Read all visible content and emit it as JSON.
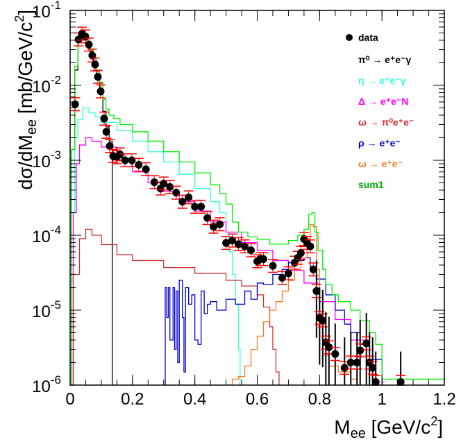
{
  "chart_data": {
    "type": "line",
    "xlabel": {
      "main": "M",
      "sub": "ee",
      "unit": " [GeV/c",
      "unit_sup": "2",
      "unit_end": "]"
    },
    "ylabel": {
      "main": "dσ/dM",
      "sub": "ee",
      "unit": " [mb/GeV/c",
      "unit_sup": "2",
      "unit_end": "]"
    },
    "xlim": [
      0,
      1.2
    ],
    "ylim": [
      1e-06,
      0.1
    ],
    "yscale": "log",
    "grid": false,
    "legend_position": "top-right",
    "x_ticks": [
      "0",
      "0.2",
      "0.4",
      "0.6",
      "0.8",
      "1",
      "1.2"
    ],
    "y_ticks": [
      {
        "base": "10",
        "exp": "-6"
      },
      {
        "base": "10",
        "exp": "-5"
      },
      {
        "base": "10",
        "exp": "-4"
      },
      {
        "base": "10",
        "exp": "-3"
      },
      {
        "base": "10",
        "exp": "-2"
      },
      {
        "base": "10",
        "exp": "-1"
      }
    ],
    "data": {
      "name": "data",
      "color": "#000000",
      "error_color": "#ff0000",
      "points": [
        [
          0.016,
          0.0056
        ],
        [
          0.027,
          0.041
        ],
        [
          0.038,
          0.049
        ],
        [
          0.049,
          0.045
        ],
        [
          0.06,
          0.035
        ],
        [
          0.071,
          0.025
        ],
        [
          0.08,
          0.019
        ],
        [
          0.089,
          0.013
        ],
        [
          0.098,
          0.0083
        ],
        [
          0.109,
          0.0036
        ],
        [
          0.116,
          0.0024
        ],
        [
          0.127,
          0.00155
        ],
        [
          0.138,
          0.00114
        ],
        [
          0.149,
          0.0011
        ],
        [
          0.16,
          0.0012
        ],
        [
          0.176,
          0.001
        ],
        [
          0.198,
          0.001
        ],
        [
          0.22,
          0.00087
        ],
        [
          0.243,
          0.00076
        ],
        [
          0.27,
          0.00051
        ],
        [
          0.29,
          0.00042
        ],
        [
          0.3,
          0.00049
        ],
        [
          0.32,
          0.00044
        ],
        [
          0.34,
          0.00037
        ],
        [
          0.36,
          0.00028
        ],
        [
          0.38,
          0.00032
        ],
        [
          0.4,
          0.00024
        ],
        [
          0.42,
          0.00024
        ],
        [
          0.44,
          0.00017
        ],
        [
          0.46,
          0.00013
        ],
        [
          0.48,
          0.00014
        ],
        [
          0.5,
          7.9e-05
        ],
        [
          0.52,
          8.5e-05
        ],
        [
          0.54,
          7.6e-05
        ],
        [
          0.56,
          7.1e-05
        ],
        [
          0.58,
          6.3e-05
        ],
        [
          0.6,
          4.5e-05
        ],
        [
          0.61,
          4.8e-05
        ],
        [
          0.62,
          4.8e-05
        ],
        [
          0.65,
          3.9e-05
        ],
        [
          0.68,
          2.7e-05
        ],
        [
          0.7,
          3.1e-05
        ],
        [
          0.72,
          4.3e-05
        ],
        [
          0.73,
          5e-05
        ],
        [
          0.74,
          5.8e-05
        ],
        [
          0.75,
          8.9e-05
        ],
        [
          0.76,
          7.9e-05
        ],
        [
          0.77,
          7.1e-05
        ],
        [
          0.78,
          3.5e-05
        ],
        [
          0.79,
          1.8e-05
        ],
        [
          0.8,
          7.9e-06
        ],
        [
          0.81,
          7.3e-06
        ],
        [
          0.82,
          3.7e-06
        ],
        [
          0.83,
          3.2e-06
        ],
        [
          0.85,
          2.6e-06
        ],
        [
          0.88,
          1.7e-06
        ],
        [
          0.9,
          2e-06
        ],
        [
          0.92,
          2e-06
        ],
        [
          0.93,
          2.9e-06
        ],
        [
          0.95,
          3.6e-06
        ],
        [
          0.96,
          2e-06
        ],
        [
          0.97,
          1.7e-06
        ],
        [
          0.98,
          1.1e-06
        ],
        [
          1.06,
          1.1e-06
        ]
      ]
    },
    "series": [
      {
        "name": "π⁰ → e⁺e⁻γ",
        "color": "#000000",
        "points": [
          [
            0.0,
            1e-06
          ],
          [
            0.005,
            0.0014
          ],
          [
            0.015,
            0.016
          ],
          [
            0.025,
            0.04
          ],
          [
            0.035,
            0.048
          ],
          [
            0.045,
            0.045
          ],
          [
            0.055,
            0.036
          ],
          [
            0.065,
            0.028
          ],
          [
            0.075,
            0.021
          ],
          [
            0.085,
            0.014
          ],
          [
            0.095,
            0.009
          ],
          [
            0.105,
            0.0045
          ],
          [
            0.115,
            0.0028
          ],
          [
            0.125,
            0.0018
          ],
          [
            0.135,
            1e-06
          ]
        ]
      },
      {
        "name": "η → e⁺e⁻γ",
        "color": "#33ffdd",
        "points": [
          [
            0.0,
            1e-06
          ],
          [
            0.005,
            0.0002
          ],
          [
            0.015,
            0.002
          ],
          [
            0.025,
            0.0035
          ],
          [
            0.04,
            0.005
          ],
          [
            0.06,
            0.0043
          ],
          [
            0.08,
            0.0038
          ],
          [
            0.1,
            0.0032
          ],
          [
            0.15,
            0.0025
          ],
          [
            0.2,
            0.0018
          ],
          [
            0.25,
            0.0013
          ],
          [
            0.3,
            0.00095
          ],
          [
            0.35,
            0.00065
          ],
          [
            0.4,
            0.00042
          ],
          [
            0.45,
            0.00028
          ],
          [
            0.48,
            0.0002
          ],
          [
            0.5,
            0.00011
          ],
          [
            0.51,
            6e-05
          ],
          [
            0.52,
            3e-05
          ],
          [
            0.53,
            1.2e-05
          ],
          [
            0.54,
            3e-06
          ],
          [
            0.545,
            1e-06
          ]
        ]
      },
      {
        "name": "Δ → e⁺e⁻N",
        "color": "#ff00ff",
        "points": [
          [
            0.0,
            1e-06
          ],
          [
            0.01,
            0.0002
          ],
          [
            0.02,
            0.0009
          ],
          [
            0.03,
            0.0016
          ],
          [
            0.05,
            0.002
          ],
          [
            0.07,
            0.0018
          ],
          [
            0.1,
            0.0015
          ],
          [
            0.15,
            0.001
          ],
          [
            0.2,
            0.0007
          ],
          [
            0.25,
            0.0005
          ],
          [
            0.3,
            0.00038
          ],
          [
            0.35,
            0.00028
          ],
          [
            0.4,
            0.00021
          ],
          [
            0.45,
            0.00015
          ],
          [
            0.5,
            0.00011
          ],
          [
            0.55,
            8e-05
          ],
          [
            0.6,
            6.3e-05
          ],
          [
            0.65,
            4.6e-05
          ],
          [
            0.7,
            3.4e-05
          ],
          [
            0.75,
            2.3e-05
          ],
          [
            0.8,
            1.3e-05
          ],
          [
            0.85,
            7.5e-06
          ],
          [
            0.9,
            4e-06
          ],
          [
            0.95,
            2.2e-06
          ],
          [
            1.0,
            1.1e-06
          ]
        ]
      },
      {
        "name": "ω → π⁰e⁺e⁻",
        "color": "#cc3333",
        "points": [
          [
            0.0,
            1e-06
          ],
          [
            0.01,
            3e-05
          ],
          [
            0.03,
            9e-05
          ],
          [
            0.05,
            0.00012
          ],
          [
            0.07,
            0.0001
          ],
          [
            0.1,
            7.5e-05
          ],
          [
            0.15,
            5.5e-05
          ],
          [
            0.2,
            4.6e-05
          ],
          [
            0.3,
            3.7e-05
          ],
          [
            0.4,
            3.1e-05
          ],
          [
            0.5,
            2.5e-05
          ],
          [
            0.55,
            2.1e-05
          ],
          [
            0.6,
            1.6e-05
          ],
          [
            0.62,
            1.1e-05
          ],
          [
            0.64,
            6e-06
          ],
          [
            0.65,
            3e-06
          ],
          [
            0.66,
            1.5e-06
          ],
          [
            0.67,
            1e-06
          ]
        ]
      },
      {
        "name": "ρ → e⁺e⁻",
        "color": "#0000cc",
        "points": [
          [
            0.3,
            1e-06
          ],
          [
            0.305,
            2e-05
          ],
          [
            0.31,
            8e-06
          ],
          [
            0.315,
            2e-05
          ],
          [
            0.32,
            4e-06
          ],
          [
            0.33,
            2e-05
          ],
          [
            0.335,
            3e-06
          ],
          [
            0.34,
            1.8e-05
          ],
          [
            0.345,
            2e-06
          ],
          [
            0.35,
            2.5e-05
          ],
          [
            0.36,
            8e-06
          ],
          [
            0.365,
            1.5e-06
          ],
          [
            0.37,
            2e-05
          ],
          [
            0.38,
            1.2e-05
          ],
          [
            0.39,
            1.6e-05
          ],
          [
            0.4,
            4e-06
          ],
          [
            0.41,
            3.5e-06
          ],
          [
            0.42,
            1.8e-05
          ],
          [
            0.43,
            9e-06
          ],
          [
            0.44,
            1.2e-05
          ],
          [
            0.45,
            1.3e-05
          ],
          [
            0.47,
            1e-05
          ],
          [
            0.5,
            1.4e-05
          ],
          [
            0.53,
            1.2e-05
          ],
          [
            0.56,
            1.8e-05
          ],
          [
            0.58,
            1.4e-05
          ],
          [
            0.6,
            2.3e-05
          ],
          [
            0.62,
            2.2e-05
          ],
          [
            0.65,
            3e-05
          ],
          [
            0.68,
            3.5e-05
          ],
          [
            0.7,
            4.3e-05
          ],
          [
            0.73,
            4.6e-05
          ],
          [
            0.75,
            5e-05
          ],
          [
            0.77,
            3.8e-05
          ],
          [
            0.79,
            2.6e-05
          ],
          [
            0.82,
            1.6e-05
          ],
          [
            0.85,
            1e-05
          ],
          [
            0.88,
            6.5e-06
          ],
          [
            0.9,
            5e-06
          ],
          [
            0.93,
            3.5e-06
          ],
          [
            0.96,
            2.2e-06
          ],
          [
            1.0,
            1e-06
          ]
        ]
      },
      {
        "name": "ω → e⁺e⁻",
        "color": "#ff7722",
        "points": [
          [
            0.5,
            1e-06
          ],
          [
            0.52,
            1.2e-06
          ],
          [
            0.54,
            1.3e-06
          ],
          [
            0.56,
            1.8e-06
          ],
          [
            0.58,
            3e-06
          ],
          [
            0.6,
            4.5e-06
          ],
          [
            0.62,
            7e-06
          ],
          [
            0.64,
            1e-05
          ],
          [
            0.66,
            1.3e-05
          ],
          [
            0.68,
            1.8e-05
          ],
          [
            0.7,
            2.5e-05
          ],
          [
            0.72,
            3.5e-05
          ],
          [
            0.74,
            5e-05
          ],
          [
            0.76,
            9e-05
          ],
          [
            0.77,
            0.00014
          ],
          [
            0.78,
            0.00013
          ],
          [
            0.79,
            3.5e-05
          ],
          [
            0.8,
            8e-06
          ],
          [
            0.81,
            2.5e-06
          ],
          [
            0.83,
            1.8e-06
          ],
          [
            0.86,
            1.5e-06
          ],
          [
            0.9,
            1.2e-06
          ],
          [
            0.92,
            1e-06
          ]
        ]
      },
      {
        "name": "sum1",
        "color": "#00ee00",
        "points": [
          [
            0.0,
            1e-06
          ],
          [
            0.005,
            0.0014
          ],
          [
            0.015,
            0.018
          ],
          [
            0.025,
            0.042
          ],
          [
            0.035,
            0.051
          ],
          [
            0.045,
            0.048
          ],
          [
            0.055,
            0.039
          ],
          [
            0.065,
            0.03
          ],
          [
            0.075,
            0.023
          ],
          [
            0.085,
            0.016
          ],
          [
            0.095,
            0.011
          ],
          [
            0.105,
            0.0065
          ],
          [
            0.115,
            0.0048
          ],
          [
            0.125,
            0.004
          ],
          [
            0.14,
            0.0036
          ],
          [
            0.16,
            0.003
          ],
          [
            0.2,
            0.0024
          ],
          [
            0.25,
            0.0018
          ],
          [
            0.3,
            0.0013
          ],
          [
            0.35,
            0.00095
          ],
          [
            0.4,
            0.00068
          ],
          [
            0.45,
            0.00047
          ],
          [
            0.48,
            0.00036
          ],
          [
            0.5,
            0.00026
          ],
          [
            0.52,
            0.00015
          ],
          [
            0.54,
            0.00011
          ],
          [
            0.57,
            9.5e-05
          ],
          [
            0.6,
            8.8e-05
          ],
          [
            0.64,
            7.6e-05
          ],
          [
            0.68,
            7.6e-05
          ],
          [
            0.7,
            8.5e-05
          ],
          [
            0.73,
            0.0001
          ],
          [
            0.75,
            0.00012
          ],
          [
            0.765,
            0.00019
          ],
          [
            0.775,
            0.0002
          ],
          [
            0.785,
            0.00011
          ],
          [
            0.795,
            6.3e-05
          ],
          [
            0.81,
            3.5e-05
          ],
          [
            0.82,
            2.2e-05
          ],
          [
            0.84,
            1.6e-05
          ],
          [
            0.86,
            1.3e-05
          ],
          [
            0.9,
            1e-05
          ],
          [
            0.93,
            7.3e-06
          ],
          [
            0.96,
            5e-06
          ],
          [
            0.98,
            3.5e-06
          ],
          [
            1.0,
            1.2e-06
          ],
          [
            1.2,
            1.1e-06
          ]
        ]
      }
    ]
  }
}
